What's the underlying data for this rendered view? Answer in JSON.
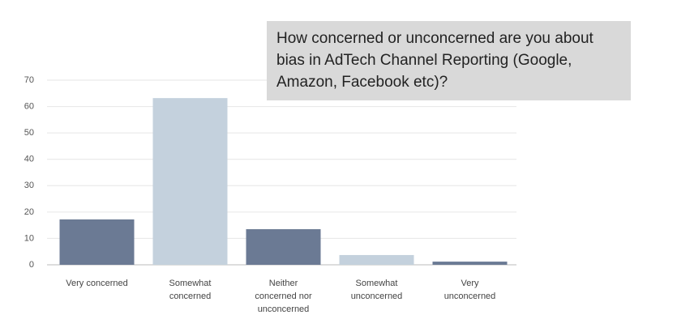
{
  "chart_data": {
    "type": "bar",
    "title": "How concerned or unconcerned are you about bias in AdTech Channel Reporting (Google, Amazon, Facebook etc)?",
    "categories": [
      "Very concerned",
      "Somewhat concerned",
      "Neither concerned nor unconcerned",
      "Somewhat unconcerned",
      "Very unconcerned"
    ],
    "values": [
      17.2,
      63.2,
      13.5,
      3.7,
      1.2
    ],
    "colors": [
      "#6b7a94",
      "#c4d1dd",
      "#6b7a94",
      "#c4d1dd",
      "#6b7a94"
    ],
    "ylim": [
      0,
      70
    ],
    "yticks": [
      0,
      10,
      20,
      30,
      40,
      50,
      60,
      70
    ],
    "grid": true
  }
}
